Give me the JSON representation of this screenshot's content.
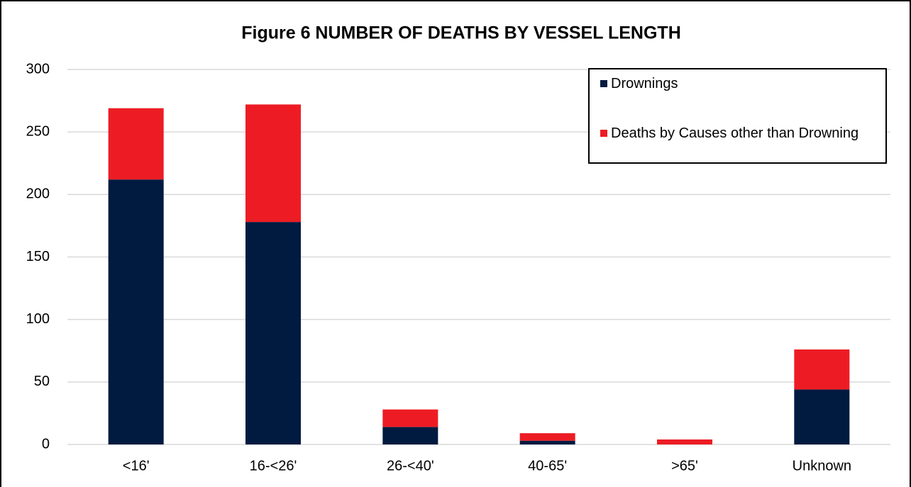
{
  "chart_data": {
    "type": "stacked_bar",
    "title": "Figure 6 NUMBER OF DEATHS BY VESSEL LENGTH",
    "categories": [
      "<16'",
      "16-<26'",
      "26-<40'",
      "40-65'",
      ">65'",
      "Unknown"
    ],
    "series": [
      {
        "name": "Drownings",
        "color": "#001a40",
        "values": [
          212,
          178,
          14,
          3,
          0,
          44
        ]
      },
      {
        "name": "Deaths by Causes other than Drowning",
        "color": "#ed1c24",
        "values": [
          57,
          94,
          14,
          6,
          4,
          32
        ]
      }
    ],
    "ylim": [
      0,
      300
    ],
    "yticks": [
      0,
      50,
      100,
      150,
      200,
      250,
      300
    ],
    "grid": true,
    "legend": "upper right"
  }
}
